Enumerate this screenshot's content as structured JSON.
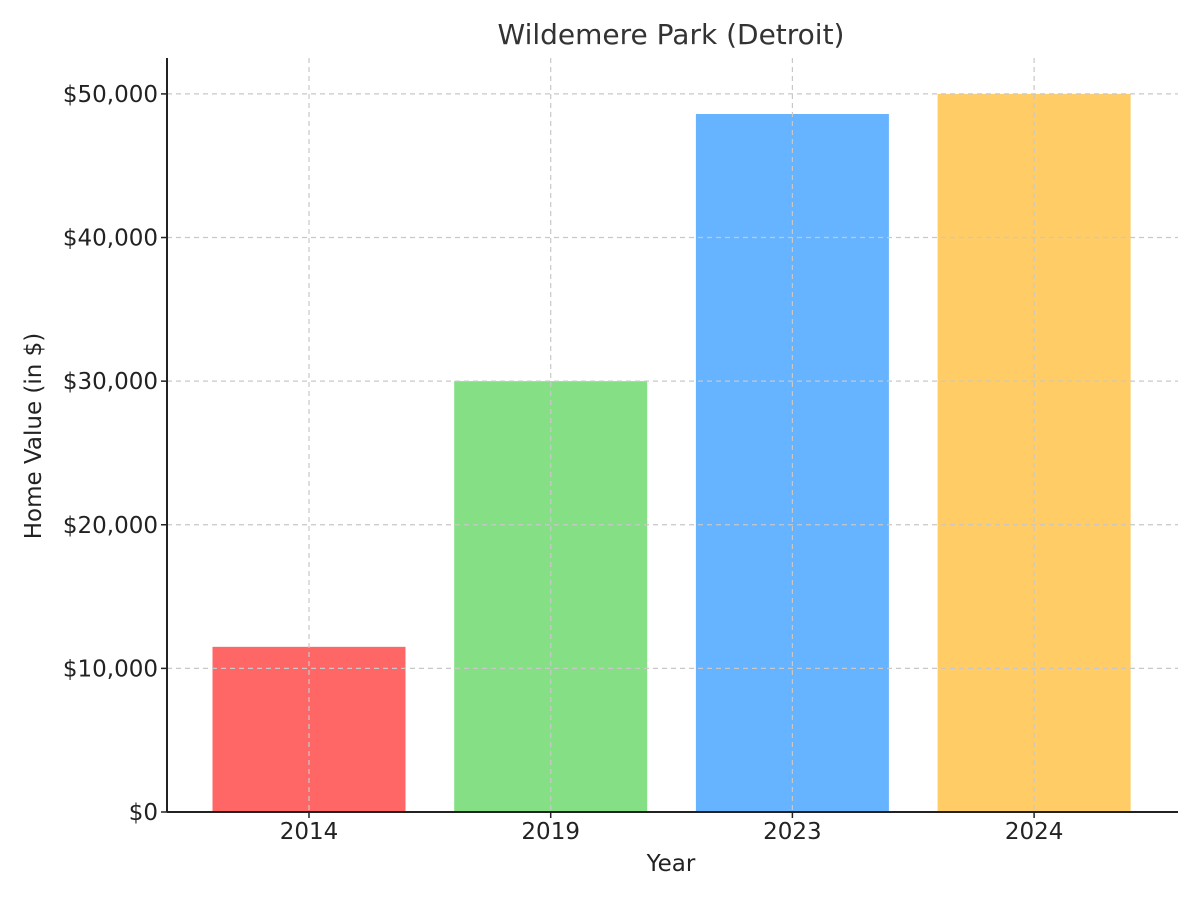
{
  "chart_data": {
    "type": "bar",
    "title": "Wildemere Park (Detroit)",
    "xlabel": "Year",
    "ylabel": "Home Value (in $)",
    "categories": [
      "2014",
      "2019",
      "2023",
      "2024"
    ],
    "values": [
      11500,
      30000,
      48600,
      50000
    ],
    "colors": [
      "#ff6666",
      "#85e085",
      "#66b3ff",
      "#ffcc66"
    ],
    "ylim": [
      0,
      52500
    ],
    "yticks": [
      0,
      10000,
      20000,
      30000,
      40000,
      50000
    ],
    "ytick_labels": [
      "$0",
      "$10,000",
      "$20,000",
      "$30,000",
      "$40,000",
      "$50,000"
    ],
    "grid": true,
    "legend": "none"
  }
}
